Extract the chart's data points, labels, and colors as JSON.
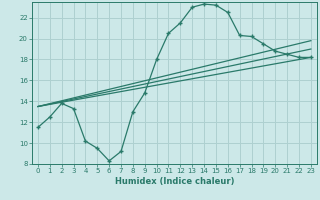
{
  "xlabel": "Humidex (Indice chaleur)",
  "bg_color": "#cce8e8",
  "grid_color": "#aed0d0",
  "line_color": "#2a7a6a",
  "xlim": [
    -0.5,
    23.5
  ],
  "ylim": [
    8,
    23.5
  ],
  "xticks": [
    0,
    1,
    2,
    3,
    4,
    5,
    6,
    7,
    8,
    9,
    10,
    11,
    12,
    13,
    14,
    15,
    16,
    17,
    18,
    19,
    20,
    21,
    22,
    23
  ],
  "yticks": [
    8,
    10,
    12,
    14,
    16,
    18,
    20,
    22
  ],
  "curve1_x": [
    0,
    1,
    2,
    3,
    4,
    5,
    6,
    7,
    8,
    9,
    10,
    11,
    12,
    13,
    14,
    15,
    16,
    17,
    18,
    19,
    20,
    21,
    22,
    23
  ],
  "curve1_y": [
    11.5,
    12.5,
    13.8,
    13.3,
    10.2,
    9.5,
    8.3,
    9.2,
    13.0,
    14.8,
    18.0,
    20.5,
    21.5,
    23.0,
    23.3,
    23.2,
    22.5,
    20.3,
    20.2,
    19.5,
    18.8,
    18.5,
    18.2,
    18.2
  ],
  "line2_x": [
    0,
    23
  ],
  "line2_y": [
    13.5,
    18.2
  ],
  "line3_x": [
    0,
    23
  ],
  "line3_y": [
    13.5,
    19.0
  ],
  "line4_x": [
    0,
    23
  ],
  "line4_y": [
    13.5,
    19.8
  ]
}
